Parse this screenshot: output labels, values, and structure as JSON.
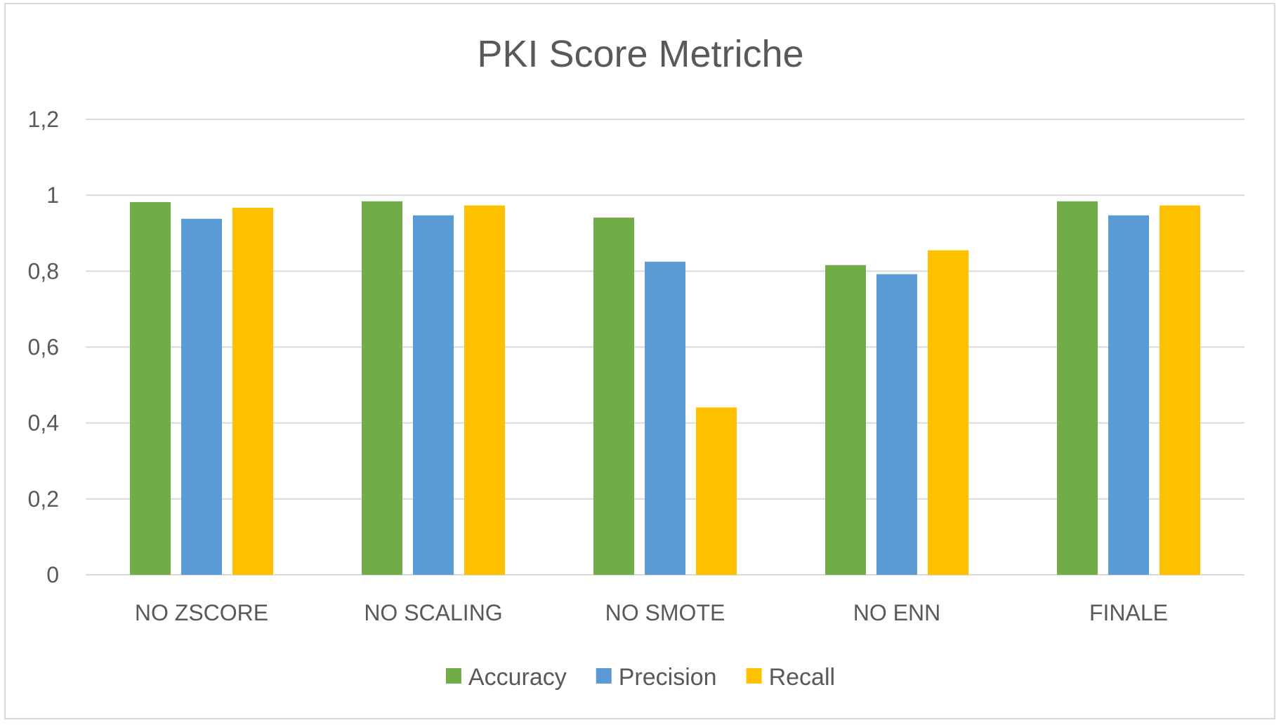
{
  "chart_data": {
    "type": "bar",
    "title": "PKI Score Metriche",
    "xlabel": "",
    "ylabel": "",
    "categories": [
      "NO ZSCORE",
      "NO SCALING",
      "NO SMOTE",
      "NO ENN",
      "FINALE"
    ],
    "series": [
      {
        "name": "Accuracy",
        "color": "#70AD47",
        "values": [
          0.982,
          0.984,
          0.941,
          0.816,
          0.984
        ]
      },
      {
        "name": "Precision",
        "color": "#5B9BD5",
        "values": [
          0.938,
          0.947,
          0.825,
          0.792,
          0.947
        ]
      },
      {
        "name": "Recall",
        "color": "#FFC000",
        "values": [
          0.967,
          0.973,
          0.441,
          0.855,
          0.973
        ]
      }
    ],
    "ylim": [
      0,
      1.2
    ],
    "yticks": [
      "0",
      "0,2",
      "0,4",
      "0,6",
      "0,8",
      "1",
      "1,2"
    ],
    "grid": true,
    "legend_position": "bottom"
  }
}
